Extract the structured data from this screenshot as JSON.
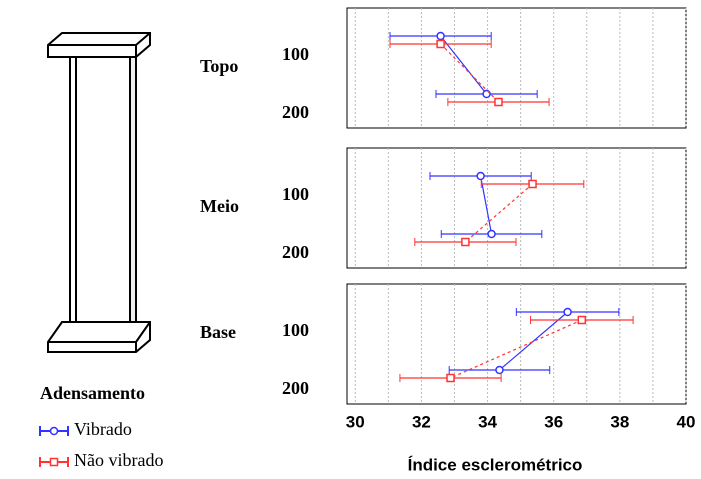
{
  "chart_data": {
    "type": "errorbar",
    "x_label": "Índice esclerométrico",
    "legend_title": "Adensamento",
    "xlim": [
      29.75,
      40
    ],
    "xticks": [
      30,
      32,
      34,
      36,
      38,
      40
    ],
    "minor_xticks": [
      31,
      33,
      35,
      37,
      39
    ],
    "grid": true,
    "series": [
      {
        "name": "Vibrado",
        "color": "#3333ff",
        "dash": false,
        "marker": "circle"
      },
      {
        "name": "Não vibrado",
        "color": "#ff3333",
        "dash": true,
        "marker": "square"
      }
    ],
    "panels": [
      {
        "label": "Topo",
        "categories": [
          "100",
          "200"
        ],
        "values": [
          [
            32.58,
            33.97
          ],
          [
            32.58,
            34.33
          ]
        ],
        "errors": [
          [
            1.53,
            1.53
          ],
          [
            1.53,
            1.53
          ]
        ]
      },
      {
        "label": "Meio",
        "categories": [
          "100",
          "200"
        ],
        "values": [
          [
            33.79,
            34.12
          ],
          [
            35.36,
            33.33
          ]
        ],
        "errors": [
          [
            1.53,
            1.52
          ],
          [
            1.55,
            1.53
          ]
        ]
      },
      {
        "label": "Base",
        "categories": [
          "100",
          "200"
        ],
        "values": [
          [
            36.42,
            34.36
          ],
          [
            36.85,
            32.88
          ]
        ],
        "errors": [
          [
            1.55,
            1.52
          ],
          [
            1.55,
            1.53
          ]
        ]
      }
    ]
  }
}
